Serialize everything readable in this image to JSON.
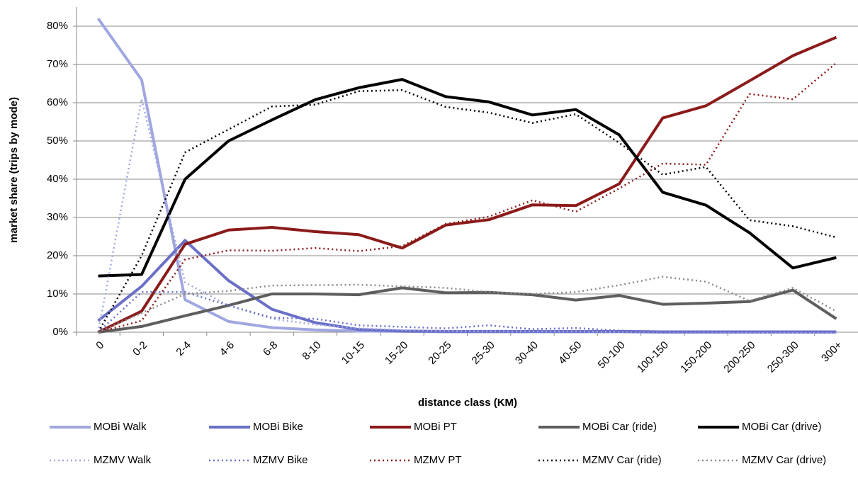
{
  "chart_data": {
    "type": "line",
    "xlabel": "distance class (KM)",
    "ylabel": "market share (trips by mode)",
    "categories": [
      "0",
      "0-2",
      "2-4",
      "4-6",
      "6-8",
      "8-10",
      "10-15",
      "15-20",
      "20-25",
      "25-30",
      "30-40",
      "40-50",
      "50-100",
      "100-150",
      "150-200",
      "200-250",
      "250-300",
      "300+"
    ],
    "ylim": [
      0,
      85
    ],
    "yticks": [
      {
        "value": 0,
        "label": "0%"
      },
      {
        "value": 10,
        "label": "10%"
      },
      {
        "value": 20,
        "label": "20%"
      },
      {
        "value": 30,
        "label": "30%"
      },
      {
        "value": 40,
        "label": "40%"
      },
      {
        "value": 50,
        "label": "50%"
      },
      {
        "value": 60,
        "label": "60%"
      },
      {
        "value": 70,
        "label": "70%"
      },
      {
        "value": 80,
        "label": "80%"
      }
    ],
    "grid": true,
    "legend": "bottom",
    "series": [
      {
        "name": "MOBi Walk",
        "color": "#a0a7e0",
        "style": "solid",
        "values": [
          82,
          66,
          8.5,
          2.8,
          1.2,
          0.6,
          0.3,
          0.2,
          0.1,
          0.1,
          0.1,
          0.1,
          0.1,
          0,
          0,
          0,
          0,
          0
        ]
      },
      {
        "name": "MOBi Bike",
        "color": "#6a6fc8",
        "style": "solid",
        "values": [
          3,
          12,
          24,
          13.5,
          6,
          2.5,
          0.7,
          0.3,
          0.2,
          0.2,
          0.2,
          0.2,
          0.2,
          0.1,
          0.1,
          0.1,
          0.1,
          0.1
        ]
      },
      {
        "name": "MOBi PT",
        "color": "#8b1a1a",
        "style": "solid",
        "values": [
          0,
          5.5,
          23,
          26.7,
          27.4,
          26.3,
          25.5,
          22,
          28,
          29.4,
          33.3,
          33.1,
          38.8,
          56,
          59.2,
          65.7,
          72.3,
          77.1
        ]
      },
      {
        "name": "MOBi Car (ride)",
        "color": "#5e5e5e",
        "style": "solid",
        "values": [
          0,
          1.5,
          4.3,
          7,
          10,
          10,
          9.8,
          11.6,
          10.3,
          10.4,
          9.8,
          8.4,
          9.6,
          7.3,
          7.6,
          8,
          11,
          3.5
        ]
      },
      {
        "name": "MOBi Car (drive)",
        "color": "#000000",
        "style": "solid",
        "values": [
          14.7,
          15.1,
          40,
          50,
          55.5,
          60.8,
          63.9,
          66.1,
          61.6,
          60.2,
          56.8,
          58.2,
          51.6,
          36.6,
          33.2,
          26,
          16.8,
          19.5
        ]
      },
      {
        "name": "MZMV Walk",
        "color": "#a0a7e0",
        "style": "dotted",
        "values": [
          0,
          61,
          13,
          7,
          3.5,
          2,
          1,
          0.6,
          0.3,
          0.2,
          0.2,
          0.2,
          0.1,
          0.1,
          0.1,
          0,
          0,
          0
        ]
      },
      {
        "name": "MZMV Bike",
        "color": "#6a6fc8",
        "style": "dotted",
        "values": [
          0,
          10.5,
          10.5,
          7,
          3.8,
          3.5,
          1.8,
          1.4,
          1.0,
          1.8,
          0.8,
          1.1,
          0.4,
          0.2,
          0.2,
          0.2,
          0.2,
          0.2
        ]
      },
      {
        "name": "MZMV PT",
        "color": "#8b1a1a",
        "style": "dotted",
        "values": [
          0,
          3,
          19,
          21.4,
          21.3,
          22,
          21.2,
          22.5,
          28.3,
          30.2,
          34.5,
          31.5,
          37.6,
          44.1,
          43.8,
          62.3,
          60.9,
          70.4
        ]
      },
      {
        "name": "MZMV Car (ride)",
        "color": "#000000",
        "style": "dotted",
        "values": [
          0,
          20,
          47,
          53,
          59,
          59.5,
          63,
          63.3,
          58.9,
          57.4,
          54.7,
          57,
          49.5,
          41.2,
          43.2,
          29.3,
          27.7,
          24.8
        ]
      },
      {
        "name": "MZMV Car (drive)",
        "color": "#8a8a8a",
        "style": "dotted",
        "values": [
          0,
          5,
          10,
          10.8,
          12.2,
          12.3,
          12.4,
          12,
          11.6,
          10.5,
          10,
          10.5,
          12.3,
          14.5,
          13.2,
          8.2,
          11.6,
          5.5
        ]
      }
    ]
  }
}
